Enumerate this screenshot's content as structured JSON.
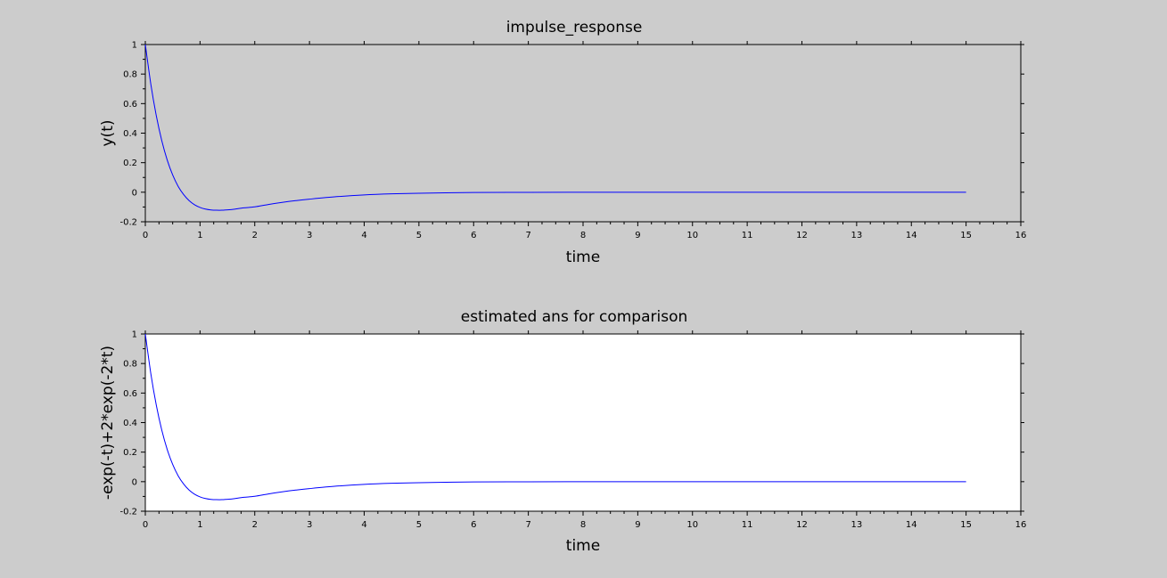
{
  "colors": {
    "figure_background": "#cccccc",
    "axes1_background": "#cccccc",
    "axes2_background": "#ffffff",
    "curve": "#0000ff",
    "axis": "#000000"
  },
  "chart_data": [
    {
      "type": "line",
      "title": "impulse_response",
      "xlabel": "time",
      "ylabel": "y(t)",
      "xlim": [
        0,
        16
      ],
      "ylim": [
        -0.2,
        1
      ],
      "xticks": [
        "0",
        "1",
        "2",
        "3",
        "4",
        "5",
        "6",
        "7",
        "8",
        "9",
        "10",
        "11",
        "12",
        "13",
        "14",
        "15",
        "16"
      ],
      "yticks": [
        "-0.2",
        "0",
        "0.2",
        "0.4",
        "0.6",
        "0.8",
        "1"
      ],
      "grid": false,
      "series": [
        {
          "name": "y(t)",
          "color": "#0000ff",
          "x": [
            0,
            0.1,
            0.2,
            0.3,
            0.4,
            0.5,
            0.6,
            0.7,
            0.8,
            0.9,
            1.0,
            1.1,
            1.2,
            1.3,
            1.4,
            1.5,
            1.6,
            1.8,
            2.0,
            2.25,
            2.5,
            2.75,
            3.0,
            3.5,
            4.0,
            4.5,
            5.0,
            5.5,
            6.0,
            7.0,
            8.0,
            9.0,
            10.0,
            11.0,
            12.0,
            13.0,
            14.0,
            15.0
          ],
          "y": [
            1,
            0.733,
            0.519,
            0.35,
            0.218,
            0.117,
            0.04,
            -0.016,
            -0.057,
            -0.085,
            -0.103,
            -0.114,
            -0.12,
            -0.122,
            -0.122,
            -0.119,
            -0.116,
            -0.106,
            -0.099,
            -0.083,
            -0.069,
            -0.057,
            -0.047,
            -0.03,
            -0.018,
            -0.011,
            -0.007,
            -0.004,
            -0.002,
            -0.001,
            0,
            0,
            0,
            0,
            0,
            0,
            0,
            0
          ]
        }
      ]
    },
    {
      "type": "line",
      "title": "estimated ans for comparison",
      "xlabel": "time",
      "ylabel": "-exp(-t)+2*exp(-2*t)",
      "xlim": [
        0,
        16
      ],
      "ylim": [
        -0.2,
        1
      ],
      "xticks": [
        "0",
        "1",
        "2",
        "3",
        "4",
        "5",
        "6",
        "7",
        "8",
        "9",
        "10",
        "11",
        "12",
        "13",
        "14",
        "15",
        "16"
      ],
      "yticks": [
        "-0.2",
        "0",
        "0.2",
        "0.4",
        "0.6",
        "0.8",
        "1"
      ],
      "grid": false,
      "series": [
        {
          "name": "-exp(-t)+2*exp(-2*t)",
          "color": "#0000ff",
          "x": [
            0,
            0.1,
            0.2,
            0.3,
            0.4,
            0.5,
            0.6,
            0.7,
            0.8,
            0.9,
            1.0,
            1.1,
            1.2,
            1.3,
            1.4,
            1.5,
            1.6,
            1.8,
            2.0,
            2.25,
            2.5,
            2.75,
            3.0,
            3.5,
            4.0,
            4.5,
            5.0,
            5.5,
            6.0,
            7.0,
            8.0,
            9.0,
            10.0,
            11.0,
            12.0,
            13.0,
            14.0,
            15.0
          ],
          "y": [
            1,
            0.733,
            0.519,
            0.35,
            0.218,
            0.117,
            0.04,
            -0.016,
            -0.057,
            -0.085,
            -0.103,
            -0.114,
            -0.12,
            -0.122,
            -0.122,
            -0.119,
            -0.116,
            -0.106,
            -0.099,
            -0.083,
            -0.069,
            -0.057,
            -0.047,
            -0.03,
            -0.018,
            -0.011,
            -0.007,
            -0.004,
            -0.002,
            -0.001,
            0,
            0,
            0,
            0,
            0,
            0,
            0,
            0
          ]
        }
      ]
    }
  ]
}
